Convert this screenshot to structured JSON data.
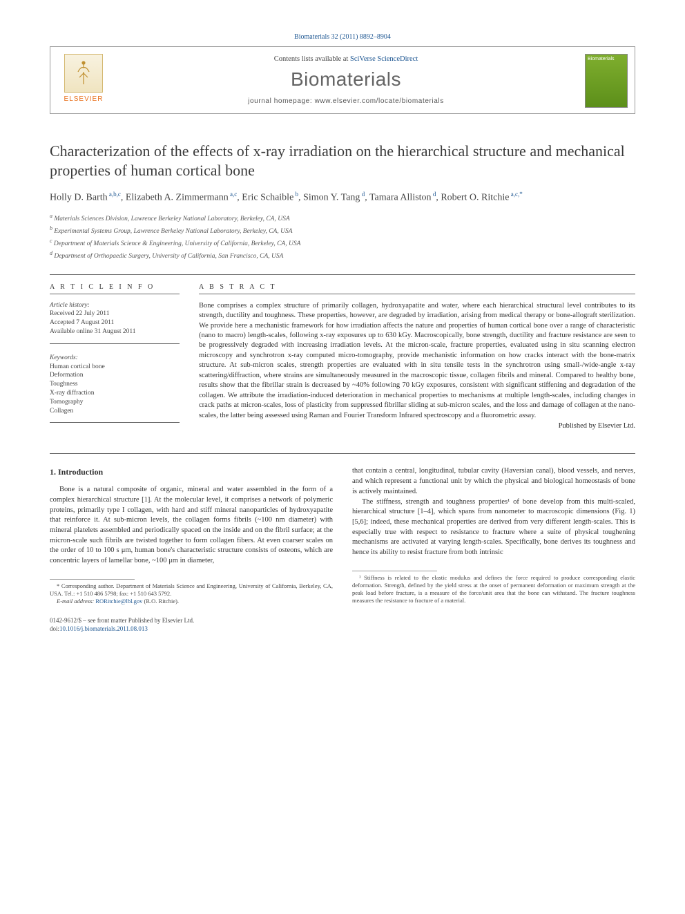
{
  "citation": "Biomaterials 32 (2011) 8892–8904",
  "header": {
    "contents_prefix": "Contents lists available at ",
    "contents_link": "SciVerse ScienceDirect",
    "journal_name": "Biomaterials",
    "homepage_prefix": "journal homepage: ",
    "homepage_url": "www.elsevier.com/locate/biomaterials",
    "elsevier_word": "ELSEVIER",
    "thumb_label": "Biomaterials"
  },
  "title": "Characterization of the effects of x-ray irradiation on the hierarchical structure and mechanical properties of human cortical bone",
  "authors": [
    {
      "name": "Holly D. Barth",
      "sup": "a,b,c"
    },
    {
      "name": "Elizabeth A. Zimmermann",
      "sup": "a,c"
    },
    {
      "name": "Eric Schaible",
      "sup": "b"
    },
    {
      "name": "Simon Y. Tang",
      "sup": "d"
    },
    {
      "name": "Tamara Alliston",
      "sup": "d"
    },
    {
      "name": "Robert O. Ritchie",
      "sup": "a,c,*"
    }
  ],
  "affiliations": [
    "Materials Sciences Division, Lawrence Berkeley National Laboratory, Berkeley, CA, USA",
    "Experimental Systems Group, Lawrence Berkeley National Laboratory, Berkeley, CA, USA",
    "Department of Materials Science & Engineering, University of California, Berkeley, CA, USA",
    "Department of Orthopaedic Surgery, University of California, San Francisco, CA, USA"
  ],
  "aff_labels": [
    "a",
    "b",
    "c",
    "d"
  ],
  "article_info": {
    "heading": "A R T I C L E   I N F O",
    "history_label": "Article history:",
    "received": "Received 22 July 2011",
    "accepted": "Accepted 7 August 2011",
    "available": "Available online 31 August 2011",
    "keywords_label": "Keywords:",
    "keywords": [
      "Human cortical bone",
      "Deformation",
      "Toughness",
      "X-ray diffraction",
      "Tomography",
      "Collagen"
    ]
  },
  "abstract": {
    "heading": "A B S T R A C T",
    "text": "Bone comprises a complex structure of primarily collagen, hydroxyapatite and water, where each hierarchical structural level contributes to its strength, ductility and toughness. These properties, however, are degraded by irradiation, arising from medical therapy or bone-allograft sterilization. We provide here a mechanistic framework for how irradiation affects the nature and properties of human cortical bone over a range of characteristic (nano to macro) length-scales, following x-ray exposures up to 630 kGy. Macroscopically, bone strength, ductility and fracture resistance are seen to be progressively degraded with increasing irradiation levels. At the micron-scale, fracture properties, evaluated using in situ scanning electron microscopy and synchrotron x-ray computed micro-tomography, provide mechanistic information on how cracks interact with the bone-matrix structure. At sub-micron scales, strength properties are evaluated with in situ tensile tests in the synchrotron using small-/wide-angle x-ray scattering/diffraction, where strains are simultaneously measured in the macroscopic tissue, collagen fibrils and mineral. Compared to healthy bone, results show that the fibrillar strain is decreased by ~40% following 70 kGy exposures, consistent with significant stiffening and degradation of the collagen. We attribute the irradiation-induced deterioration in mechanical properties to mechanisms at multiple length-scales, including changes in crack paths at micron-scales, loss of plasticity from suppressed fibrillar sliding at sub-micron scales, and the loss and damage of collagen at the nano-scales, the latter being assessed using Raman and Fourier Transform Infrared spectroscopy and a fluorometric assay.",
    "published_by": "Published by Elsevier Ltd."
  },
  "body": {
    "section_heading": "1. Introduction",
    "left_p1": "Bone is a natural composite of organic, mineral and water assembled in the form of a complex hierarchical structure [1]. At the molecular level, it comprises a network of polymeric proteins, primarily type I collagen, with hard and stiff mineral nanoparticles of hydroxyapatite that reinforce it. At sub-micron levels, the collagen forms fibrils (~100 nm diameter) with mineral platelets assembled and periodically spaced on the inside and on the fibril surface; at the micron-scale such fibrils are twisted together to form collagen fibers. At even coarser scales on the order of 10 to 100 s μm, human bone's characteristic structure consists of osteons, which are concentric layers of lamellar bone, ~100 μm in diameter,",
    "right_p1": "that contain a central, longitudinal, tubular cavity (Haversian canal), blood vessels, and nerves, and which represent a functional unit by which the physical and biological homeostasis of bone is actively maintained.",
    "right_p2": "The stiffness, strength and toughness properties¹ of bone develop from this multi-scaled, hierarchical structure [1–4], which spans from nanometer to macroscopic dimensions (Fig. 1) [5,6]; indeed, these mechanical properties are derived from very different length-scales. This is especially true with respect to resistance to fracture where a suite of physical toughening mechanisms are activated at varying length-scales. Specifically, bone derives its toughness and hence its ability to resist fracture from both intrinsic"
  },
  "footnotes": {
    "corresponding": "* Corresponding author. Department of Materials Science and Engineering, University of California, Berkeley, CA, USA. Tel.: +1 510 486 5798; fax: +1 510 643 5792.",
    "email_label": "E-mail address: ",
    "email": "RORitchie@lbl.gov",
    "email_owner": " (R.O. Ritchie).",
    "note1": "¹ Stiffness is related to the elastic modulus and defines the force required to produce corresponding elastic deformation. Strength, defined by the yield stress at the onset of permanent deformation or maximum strength at the peak load before fracture, is a measure of the force/unit area that the bone can withstand. The fracture toughness measures the resistance to fracture of a material."
  },
  "doi": {
    "line1": "0142-9612/$ – see front matter Published by Elsevier Ltd.",
    "line2_prefix": "doi:",
    "line2_link": "10.1016/j.biomaterials.2011.08.013"
  },
  "colors": {
    "link": "#1a5490",
    "elsevier_orange": "#E9711C",
    "journal_green": "#7fae2e"
  }
}
